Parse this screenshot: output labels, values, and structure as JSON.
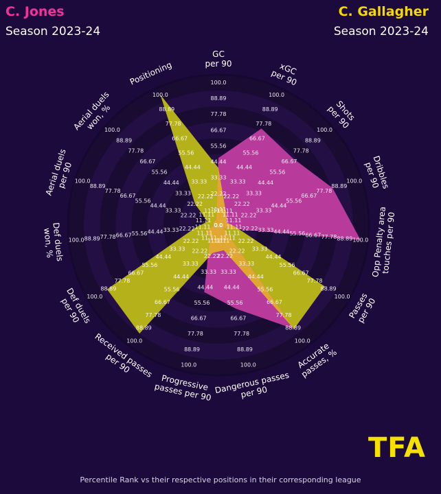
{
  "players": {
    "left": {
      "name": "C. Jones",
      "season": "Season 2023-24",
      "color": "#f0339a"
    },
    "right": {
      "name": "C. Gallagher",
      "season": "Season 2023-24",
      "color": "#f5d800"
    }
  },
  "footer": "Percentile Rank vs their respective positions in their corresponding league",
  "brand": {
    "text": "TFA",
    "color": "#f5e000"
  },
  "colors": {
    "background": "#1c0a3d",
    "ring_dark": "#1a0b33",
    "ring_light": "#240f45",
    "fill_jones": "#b5b11a",
    "fill_gallagher": "#b83a9a",
    "fill_overlap": "#e0a833"
  },
  "chart_data": {
    "type": "radar",
    "ring_labels": [
      "0.0",
      "11.11",
      "22.22",
      "33.33",
      "44.44",
      "55.56",
      "66.67",
      "77.78",
      "88.89",
      "100.0"
    ],
    "categories": [
      "GC\nper 90",
      "xGC\nper 90",
      "Shots\nper 90",
      "Dribbles\nper 90",
      "Opp Penalty area\ntouches per 90",
      "Passes\nper 90",
      "Accurate\npasses, %",
      "Dangerous passes\nper 90",
      "Progressive\npasses per 90",
      "Received passes\nper 90",
      "Def duels\nper 90",
      "Def duels\nwon, %",
      "Aerial duels\nper 90",
      "Aerial duels\nwon, %",
      "Positioning"
    ],
    "series": [
      {
        "name": "C. Gallagher",
        "values": [
          47,
          74,
          70,
          84,
          100,
          4,
          90,
          60,
          48,
          10,
          10,
          4,
          4,
          4,
          4
        ]
      },
      {
        "name": "C. Jones",
        "values": [
          40,
          12,
          8,
          6,
          12,
          86,
          90,
          18,
          20,
          94,
          90,
          16,
          8,
          22,
          100
        ]
      }
    ],
    "range": [
      0,
      100
    ]
  }
}
